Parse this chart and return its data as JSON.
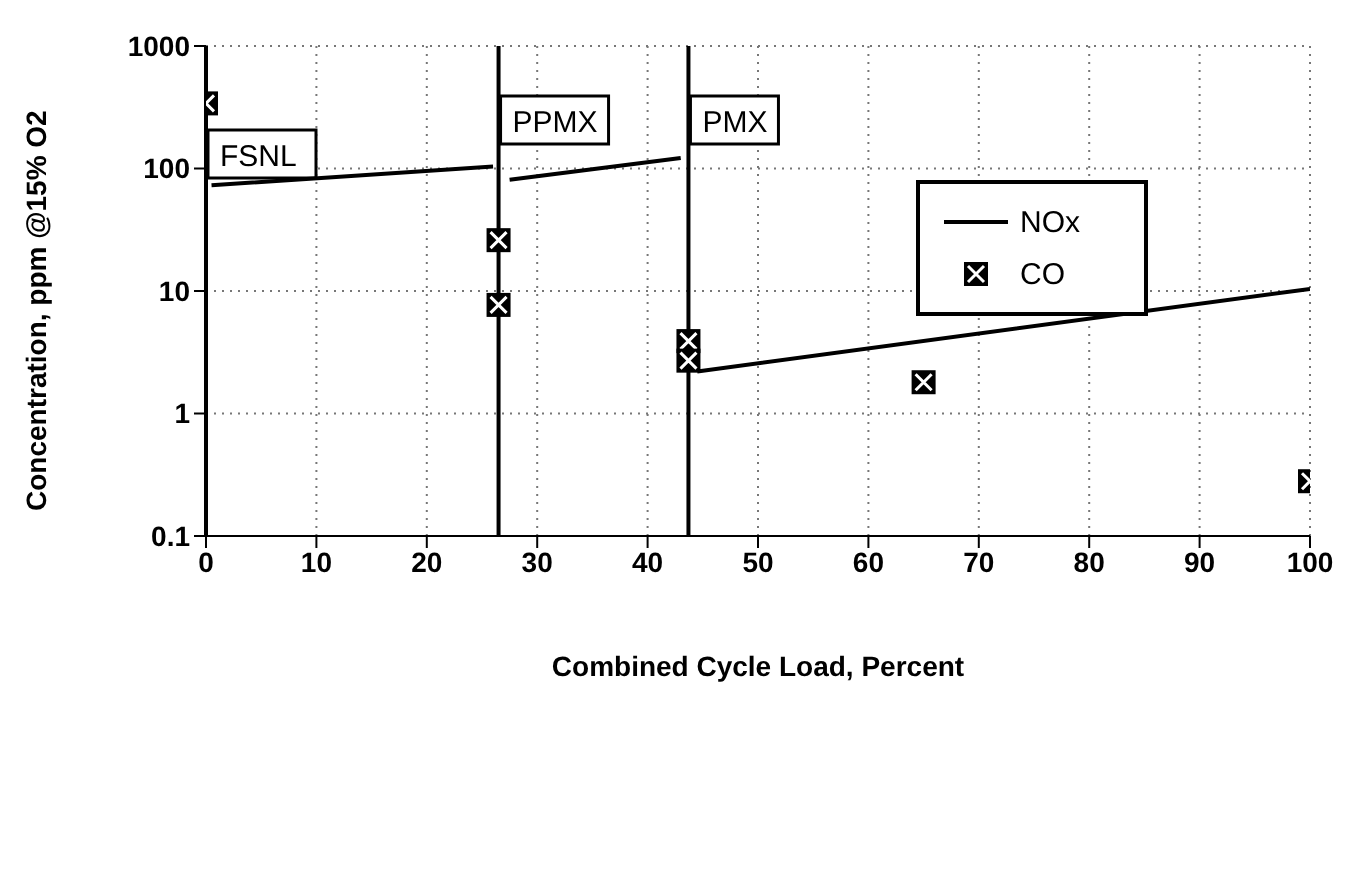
{
  "chart_data": {
    "type": "line",
    "xlabel": "Combined Cycle Load, Percent",
    "ylabel": "Concentration, ppm @15% O2",
    "xlim": [
      0,
      100
    ],
    "xticks": [
      0,
      10,
      20,
      30,
      40,
      50,
      60,
      70,
      80,
      90,
      100
    ],
    "ylim": [
      0.1,
      1000
    ],
    "yticks": [
      0.1,
      1,
      10,
      100,
      1000
    ],
    "log": true,
    "grid": true,
    "legend": "top right",
    "series": [
      {
        "name": "NOx",
        "color": "#000000",
        "marker": "none",
        "line_style": "solid",
        "x": [
          0.5,
          26,
          26.5,
          27.5,
          43,
          43.7,
          44.5,
          100
        ],
        "values": [
          73,
          104,
          null,
          81,
          122,
          null,
          2.2,
          10.4
        ]
      },
      {
        "name": "CO",
        "type": "scatter",
        "color": "#000000",
        "marker": "square",
        "x": [
          0,
          26.5,
          26.5,
          43.7,
          43.7,
          65,
          100
        ],
        "values": [
          340,
          26,
          7.7,
          3.9,
          2.7,
          1.8,
          0.28
        ]
      }
    ],
    "ref_lines": [
      {
        "axis": "x",
        "value": 0,
        "label": "FSNL",
        "color": "#000000"
      },
      {
        "axis": "x",
        "value": 26.5,
        "label": "PPMX",
        "color": "#000000"
      },
      {
        "axis": "x",
        "value": 43.7,
        "label": "PMX",
        "color": "#000000"
      }
    ]
  }
}
